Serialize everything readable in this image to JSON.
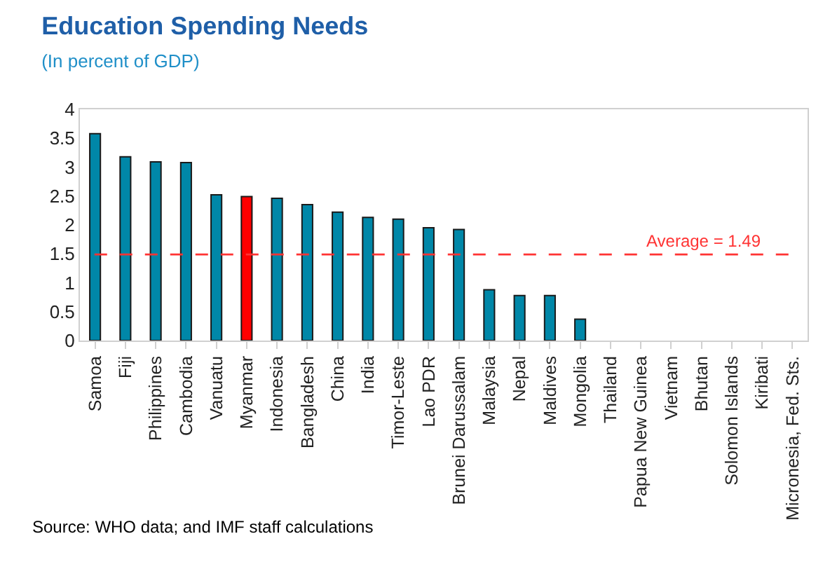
{
  "chart_data": {
    "type": "bar",
    "title": "Education Spending Needs",
    "subtitle": "(In percent of GDP)",
    "categories": [
      "Samoa",
      "Fiji",
      "Philippines",
      "Cambodia",
      "Vanuatu",
      "Myanmar",
      "Indonesia",
      "Bangladesh",
      "China",
      "India",
      "Timor-Leste",
      "Lao PDR",
      "Brunei Darussalam",
      "Malaysia",
      "Nepal",
      "Maldives",
      "Mongolia",
      "Thailand",
      "Papua New Guinea",
      "Vietnam",
      "Bhutan",
      "Solomon Islands",
      "Kiribati",
      "Micronesia, Fed. Sts."
    ],
    "values": [
      3.58,
      3.18,
      3.09,
      3.08,
      2.52,
      2.49,
      2.46,
      2.35,
      2.22,
      2.13,
      2.1,
      1.95,
      1.92,
      0.88,
      0.78,
      0.78,
      0.37,
      null,
      null,
      null,
      null,
      null,
      null,
      null
    ],
    "colors": [
      "#0087a8",
      "#0087a8",
      "#0087a8",
      "#0087a8",
      "#0087a8",
      "#ff0000",
      "#0087a8",
      "#0087a8",
      "#0087a8",
      "#0087a8",
      "#0087a8",
      "#0087a8",
      "#0087a8",
      "#0087a8",
      "#0087a8",
      "#0087a8",
      "#0087a8",
      "#0087a8",
      "#0087a8",
      "#0087a8",
      "#0087a8",
      "#0087a8",
      "#0087a8",
      "#0087a8"
    ],
    "ylim": [
      0,
      4
    ],
    "yticks": [
      0,
      0.5,
      1,
      1.5,
      2,
      2.5,
      3,
      3.5,
      4
    ],
    "ref_lines": [
      {
        "axis": "y",
        "value": 1.49,
        "label": "Average = 1.49",
        "color": "#ff3333",
        "line_style": "dashed"
      }
    ],
    "annotations": [
      "Source: WHO data; and IMF staff calculations"
    ]
  }
}
